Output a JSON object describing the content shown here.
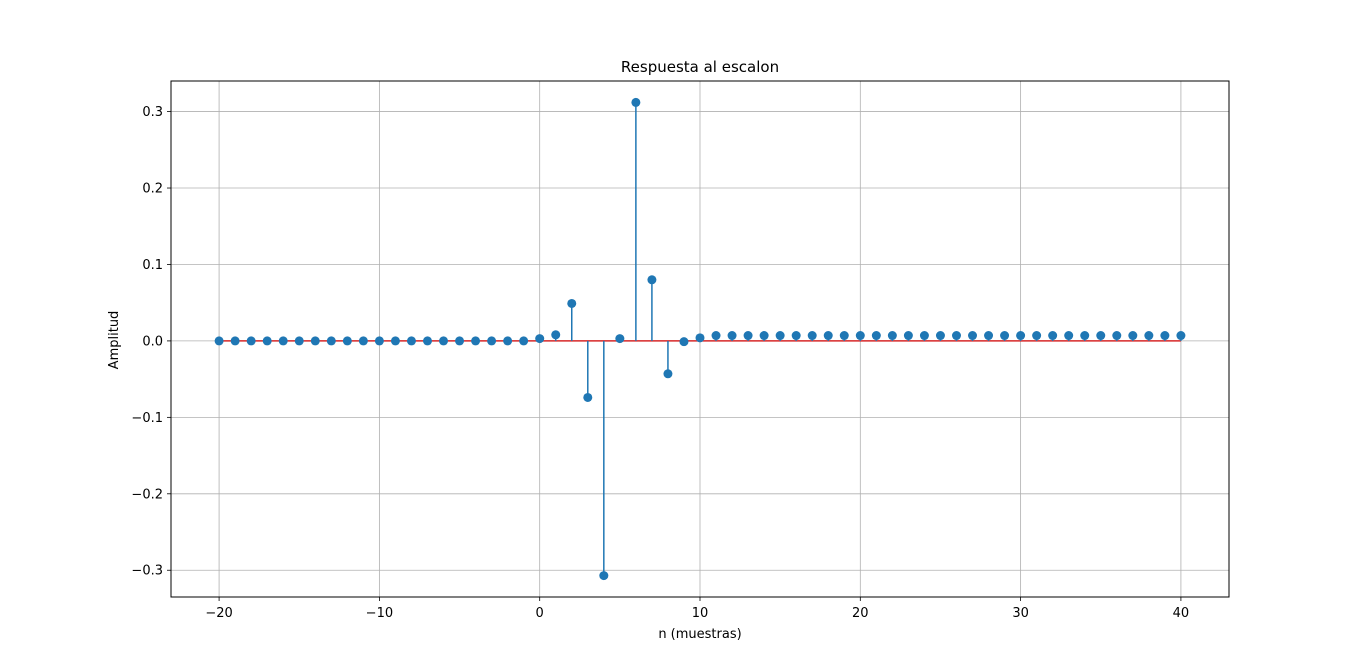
{
  "chart_data": {
    "type": "stem",
    "title": "Respuesta al escalon",
    "xlabel": "n (muestras)",
    "ylabel": "Amplitud",
    "xlim": [
      -23,
      43
    ],
    "ylim": [
      -0.335,
      0.34
    ],
    "grid": true,
    "legend": "none",
    "colors": {
      "marker": "#1f77b4",
      "stem": "#1f77b4",
      "baseline": "#d62728",
      "grid": "#b0b0b0"
    },
    "x_ticks": [
      -20,
      -10,
      0,
      10,
      20,
      30,
      40
    ],
    "x_tick_labels": [
      "−20",
      "−10",
      "0",
      "10",
      "20",
      "30",
      "40"
    ],
    "y_ticks": [
      -0.3,
      -0.2,
      -0.1,
      0.0,
      0.1,
      0.2,
      0.3
    ],
    "y_tick_labels": [
      "−0.3",
      "−0.2",
      "−0.1",
      "0.0",
      "0.1",
      "0.2",
      "0.3"
    ],
    "baseline": 0,
    "x": [
      -20,
      -19,
      -18,
      -17,
      -16,
      -15,
      -14,
      -13,
      -12,
      -11,
      -10,
      -9,
      -8,
      -7,
      -6,
      -5,
      -4,
      -3,
      -2,
      -1,
      0,
      1,
      2,
      3,
      4,
      5,
      6,
      7,
      8,
      9,
      10,
      11,
      12,
      13,
      14,
      15,
      16,
      17,
      18,
      19,
      20,
      21,
      22,
      23,
      24,
      25,
      26,
      27,
      28,
      29,
      30,
      31,
      32,
      33,
      34,
      35,
      36,
      37,
      38,
      39,
      40
    ],
    "y": [
      0,
      0,
      0,
      0,
      0,
      0,
      0,
      0,
      0,
      0,
      0,
      0,
      0,
      0,
      0,
      0,
      0,
      0,
      0,
      0,
      0.003,
      0.008,
      0.049,
      -0.074,
      -0.307,
      0.003,
      0.312,
      0.08,
      -0.043,
      -0.001,
      0.004,
      0.007,
      0.007,
      0.007,
      0.007,
      0.007,
      0.007,
      0.007,
      0.007,
      0.007,
      0.007,
      0.007,
      0.007,
      0.007,
      0.007,
      0.007,
      0.007,
      0.007,
      0.007,
      0.007,
      0.007,
      0.007,
      0.007,
      0.007,
      0.007,
      0.007,
      0.007,
      0.007,
      0.007,
      0.007,
      0.007
    ]
  }
}
